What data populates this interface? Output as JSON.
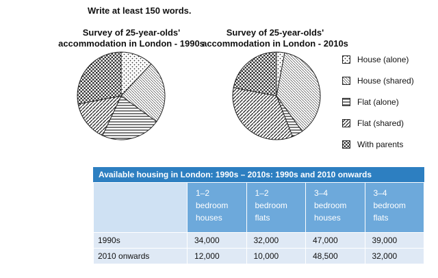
{
  "instruction": "Write at least 150 words.",
  "chart_data": [
    {
      "type": "pie",
      "title": "Survey of 25-year-olds' accommodation in London - 1990s",
      "title_lines": [
        "Survey of 25-year-olds'",
        "accommodation in London - 1990s"
      ],
      "categories": [
        "House (alone)",
        "House (shared)",
        "Flat (alone)",
        "Flat (shared)",
        "With parents"
      ],
      "values": [
        12,
        23,
        22,
        15,
        28
      ]
    },
    {
      "type": "pie",
      "title": "Survey of 25-year-olds' accommodation in London - 2010s",
      "title_lines": [
        "Survey of 25-year-olds'",
        "accommodation in London - 2010s"
      ],
      "categories": [
        "House (alone)",
        "House (shared)",
        "Flat (alone)",
        "Flat (shared)",
        "With parents"
      ],
      "values": [
        3,
        37,
        4,
        34,
        22
      ]
    },
    {
      "type": "table",
      "title": "Available housing in London: 1990s – 2010s: 1990s and 2010 onwards",
      "columns": [
        [
          "1–2",
          "bedroom",
          "houses"
        ],
        [
          "1–2",
          "bedroom",
          "flats"
        ],
        [
          "3–4",
          "bedroom",
          "houses"
        ],
        [
          "3–4",
          "bedroom",
          "flats"
        ]
      ],
      "rows": [
        {
          "label": "1990s",
          "values": [
            "34,000",
            "32,000",
            "47,000",
            "39,000"
          ]
        },
        {
          "label": "2010 onwards",
          "values": [
            "12,000",
            "10,000",
            "48,500",
            "32,000"
          ]
        }
      ]
    }
  ],
  "legend": [
    {
      "label": "House (alone)",
      "pattern": "pat-dots"
    },
    {
      "label": "House (shared)",
      "pattern": "pat-hatch-fine"
    },
    {
      "label": "Flat (alone)",
      "pattern": "pat-hlines"
    },
    {
      "label": "Flat (shared)",
      "pattern": "pat-diag"
    },
    {
      "label": "With parents",
      "pattern": "pat-dense"
    }
  ]
}
